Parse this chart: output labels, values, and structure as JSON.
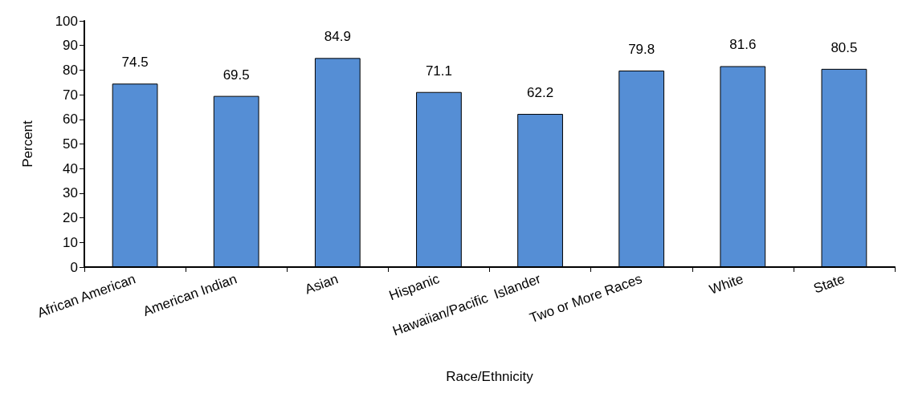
{
  "chart_data": {
    "type": "bar",
    "xlabel": "Race/Ethnicity",
    "ylabel": "Percent",
    "categories": [
      "African American",
      "American Indian",
      "Asian",
      "Hispanic",
      "Hawaiian/Pacific  Islander",
      "Two or More Races",
      "White",
      "State"
    ],
    "values": [
      74.5,
      69.5,
      84.9,
      71.1,
      62.2,
      79.8,
      81.6,
      80.5
    ],
    "color": "#558ed5",
    "ylim": [
      0,
      100
    ],
    "yticks": [
      0,
      10,
      20,
      30,
      40,
      50,
      60,
      70,
      80,
      90,
      100
    ],
    "grid": false,
    "data_labels": true
  }
}
